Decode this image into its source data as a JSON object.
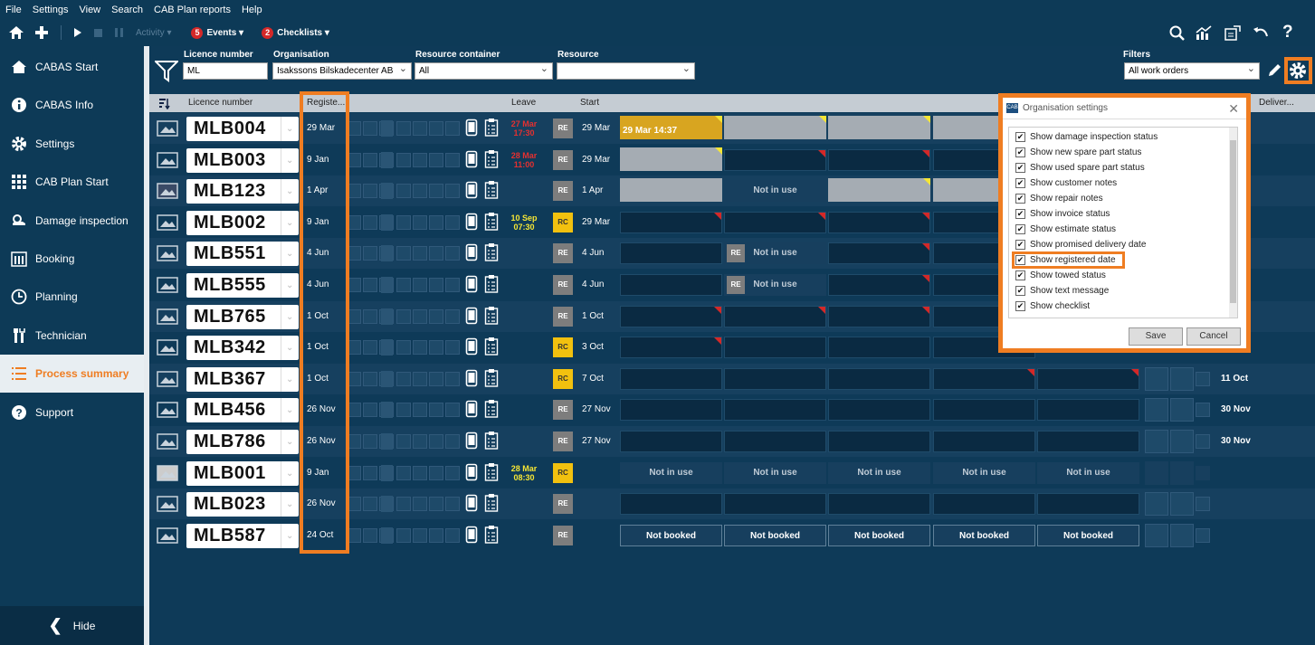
{
  "menu": [
    "File",
    "Settings",
    "View",
    "Search",
    "CAB Plan reports",
    "Help"
  ],
  "toolbar": {
    "activity": "Activity",
    "events_count": "5",
    "events": "Events",
    "checklists_count": "2",
    "checklists": "Checklists"
  },
  "sidebar": {
    "items": [
      "CABAS Start",
      "CABAS Info",
      "Settings",
      "CAB Plan Start",
      "Damage inspection",
      "Booking",
      "Planning",
      "Technician",
      "Process summary",
      "Support"
    ],
    "hide": "Hide"
  },
  "filters": {
    "licence_label": "Licence number",
    "licence_value": "ML",
    "org_label": "Organisation",
    "org_value": "Isakssons Bilskadecenter AB",
    "container_label": "Resource container",
    "container_value": "All",
    "resource_label": "Resource",
    "resource_value": "",
    "filters_label": "Filters",
    "filters_value": "All work orders"
  },
  "columns": {
    "licence": "Licence number",
    "registered": "Registe...",
    "leave": "Leave",
    "start": "Start",
    "delivery": "Deliver..."
  },
  "rows": [
    {
      "plate": "MLB004",
      "reg": "29 Mar",
      "leave": "27 Mar 17:30",
      "leave_color": "#e53030",
      "type": "RE",
      "start": "29 Mar",
      "delivery": ""
    },
    {
      "plate": "MLB003",
      "reg": "9 Jan",
      "leave": "28 Mar 11:00",
      "leave_color": "#e53030",
      "type": "RE",
      "start": "29 Mar",
      "delivery": ""
    },
    {
      "plate": "MLB123",
      "reg": "1 Apr",
      "leave": "",
      "leave_color": "#fff",
      "type": "RE",
      "start": "1 Apr",
      "delivery": ""
    },
    {
      "plate": "MLB002",
      "reg": "9 Jan",
      "leave": "10 Sep 07:30",
      "leave_color": "#f5e535",
      "type": "RC",
      "start": "29 Mar",
      "delivery": ""
    },
    {
      "plate": "MLB551",
      "reg": "4 Jun",
      "leave": "",
      "leave_color": "#fff",
      "type": "RE",
      "start": "4 Jun",
      "delivery": ""
    },
    {
      "plate": "MLB555",
      "reg": "4 Jun",
      "leave": "",
      "leave_color": "#fff",
      "type": "RE",
      "start": "4 Jun",
      "delivery": ""
    },
    {
      "plate": "MLB765",
      "reg": "1 Oct",
      "leave": "",
      "leave_color": "#fff",
      "type": "RE",
      "start": "1 Oct",
      "delivery": ""
    },
    {
      "plate": "MLB342",
      "reg": "1 Oct",
      "leave": "",
      "leave_color": "#fff",
      "type": "RC",
      "start": "3 Oct",
      "delivery": ""
    },
    {
      "plate": "MLB367",
      "reg": "1 Oct",
      "leave": "",
      "leave_color": "#fff",
      "type": "RC",
      "start": "7 Oct",
      "delivery": "11 Oct"
    },
    {
      "plate": "MLB456",
      "reg": "26 Nov",
      "leave": "",
      "leave_color": "#fff",
      "type": "RE",
      "start": "27 Nov",
      "delivery": "30 Nov"
    },
    {
      "plate": "MLB786",
      "reg": "26 Nov",
      "leave": "",
      "leave_color": "#fff",
      "type": "RE",
      "start": "27 Nov",
      "delivery": "30 Nov"
    },
    {
      "plate": "MLB001",
      "reg": "9 Jan",
      "leave": "28 Mar 08:30",
      "leave_color": "#f5e535",
      "type": "RC",
      "start": "",
      "delivery": ""
    },
    {
      "plate": "MLB023",
      "reg": "26 Nov",
      "leave": "",
      "leave_color": "#fff",
      "type": "RE",
      "start": "",
      "delivery": ""
    },
    {
      "plate": "MLB587",
      "reg": "24 Oct",
      "leave": "",
      "leave_color": "#fff",
      "type": "RE",
      "start": "",
      "delivery": ""
    }
  ],
  "timeline": {
    "gold_text": "29 Mar 14:37",
    "not_in_use": "Not in use",
    "not_booked": "Not booked",
    "re": "RE"
  },
  "dialog": {
    "title": "Organisation settings",
    "options": [
      "Show damage inspection status",
      "Show new spare part status",
      "Show used spare part status",
      "Show customer notes",
      "Show repair notes",
      "Show invoice status",
      "Show estimate status",
      "Show promised delivery date",
      "Show registered date",
      "Show towed status",
      "Show text message",
      "Show checklist"
    ],
    "save": "Save",
    "cancel": "Cancel"
  },
  "colors": {
    "accent": "#ef7d22",
    "bg": "#0d3a57",
    "re": "#7d7d7d",
    "rc": "#f2c10f"
  }
}
